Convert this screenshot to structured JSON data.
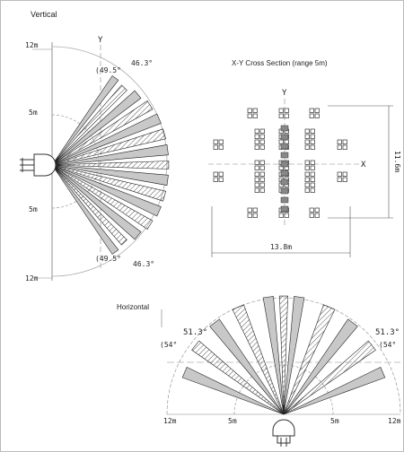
{
  "vertical": {
    "title": "Vertical",
    "axis_y": "Y",
    "range_top": "12m",
    "range_mid_top": "5m",
    "range_mid_bottom": "5m",
    "range_bottom": "12m",
    "angle_top_inner": "(49.5°",
    "angle_top_outer": "46.3°",
    "angle_bottom_inner": "(49.5°",
    "angle_bottom_outer": "46.3°"
  },
  "cross_section": {
    "title": "X-Y Cross Section (range 5m)",
    "axis_y": "Y",
    "axis_x": "X",
    "height_label": "11.6m",
    "width_label": "13.8m"
  },
  "horizontal": {
    "title": "Horizontal",
    "angle_left_outer": "51.3°",
    "angle_left_inner": "(54°",
    "angle_right_outer": "51.3°",
    "angle_right_inner": "(54°",
    "range_left": "12m",
    "range_left_mid": "5m",
    "range_right_mid": "5m",
    "range_right": "12m"
  },
  "colors": {
    "line": "#222222",
    "zone_fill": "#c8c8c8",
    "hatch": "#555555",
    "dash": "#888888"
  }
}
